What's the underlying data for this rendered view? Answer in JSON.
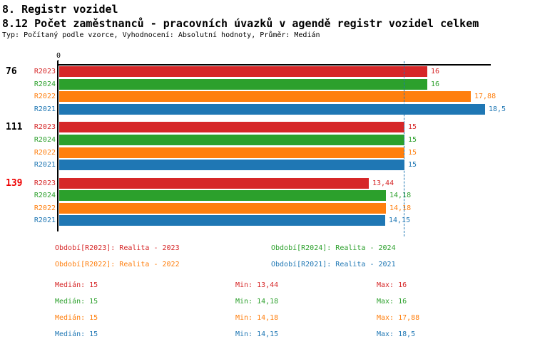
{
  "header": {
    "section_title": "8. Registr vozidel",
    "chart_title": "8.12 Počet zaměstnanců - pracovních úvazků v agendě registr vozidel celkem",
    "meta_line": "Typ: Počítaný podle vzorce, Vyhodnocení: Absolutní hodnoty, Průměr: Medián"
  },
  "colors": {
    "R2023": "#d62728",
    "R2024": "#2ca02c",
    "R2022": "#ff7f0e",
    "R2021": "#1f77b4",
    "axis": "#000000",
    "median_line": "#1f77b4",
    "highlight_group_label": "#ee0000",
    "text": "#000000"
  },
  "chart_data": {
    "type": "bar",
    "orientation": "horizontal",
    "title": "8.12 Počet zaměstnanců - pracovních úvazků v agendě registr vozidel celkem",
    "value_axis": {
      "min": 0,
      "max": 18.78,
      "position": "top",
      "tick_labels": [
        "0"
      ]
    },
    "grid": false,
    "median_line_value": 15,
    "series_order": [
      "R2023",
      "R2024",
      "R2022",
      "R2021"
    ],
    "groups": [
      {
        "label": "76",
        "highlighted": false,
        "bars": [
          {
            "series": "R2023",
            "value": 16,
            "value_label": "16"
          },
          {
            "series": "R2024",
            "value": 16,
            "value_label": "16"
          },
          {
            "series": "R2022",
            "value": 17.88,
            "value_label": "17,88"
          },
          {
            "series": "R2021",
            "value": 18.5,
            "value_label": "18,5"
          }
        ]
      },
      {
        "label": "111",
        "highlighted": false,
        "bars": [
          {
            "series": "R2023",
            "value": 15,
            "value_label": "15"
          },
          {
            "series": "R2024",
            "value": 15,
            "value_label": "15"
          },
          {
            "series": "R2022",
            "value": 15,
            "value_label": "15"
          },
          {
            "series": "R2021",
            "value": 15,
            "value_label": "15"
          }
        ]
      },
      {
        "label": "139",
        "highlighted": true,
        "bars": [
          {
            "series": "R2023",
            "value": 13.44,
            "value_label": "13,44"
          },
          {
            "series": "R2024",
            "value": 14.18,
            "value_label": "14,18"
          },
          {
            "series": "R2022",
            "value": 14.18,
            "value_label": "14,18"
          },
          {
            "series": "R2021",
            "value": 14.15,
            "value_label": "14,15"
          }
        ]
      }
    ]
  },
  "legend": [
    {
      "series": "R2023",
      "label": "Období[R2023]: Realita - 2023"
    },
    {
      "series": "R2024",
      "label": "Období[R2024]: Realita - 2024"
    },
    {
      "series": "R2022",
      "label": "Období[R2022]: Realita - 2022"
    },
    {
      "series": "R2021",
      "label": "Období[R2021]: Realita - 2021"
    }
  ],
  "stats": [
    {
      "series": "R2023",
      "median": "Medián: 15",
      "min": "Min: 13,44",
      "max": "Max: 16"
    },
    {
      "series": "R2024",
      "median": "Medián: 15",
      "min": "Min: 14,18",
      "max": "Max: 16"
    },
    {
      "series": "R2022",
      "median": "Medián: 15",
      "min": "Min: 14,18",
      "max": "Max: 17,88"
    },
    {
      "series": "R2021",
      "median": "Medián: 15",
      "min": "Min: 14,15",
      "max": "Max: 18,5"
    }
  ]
}
